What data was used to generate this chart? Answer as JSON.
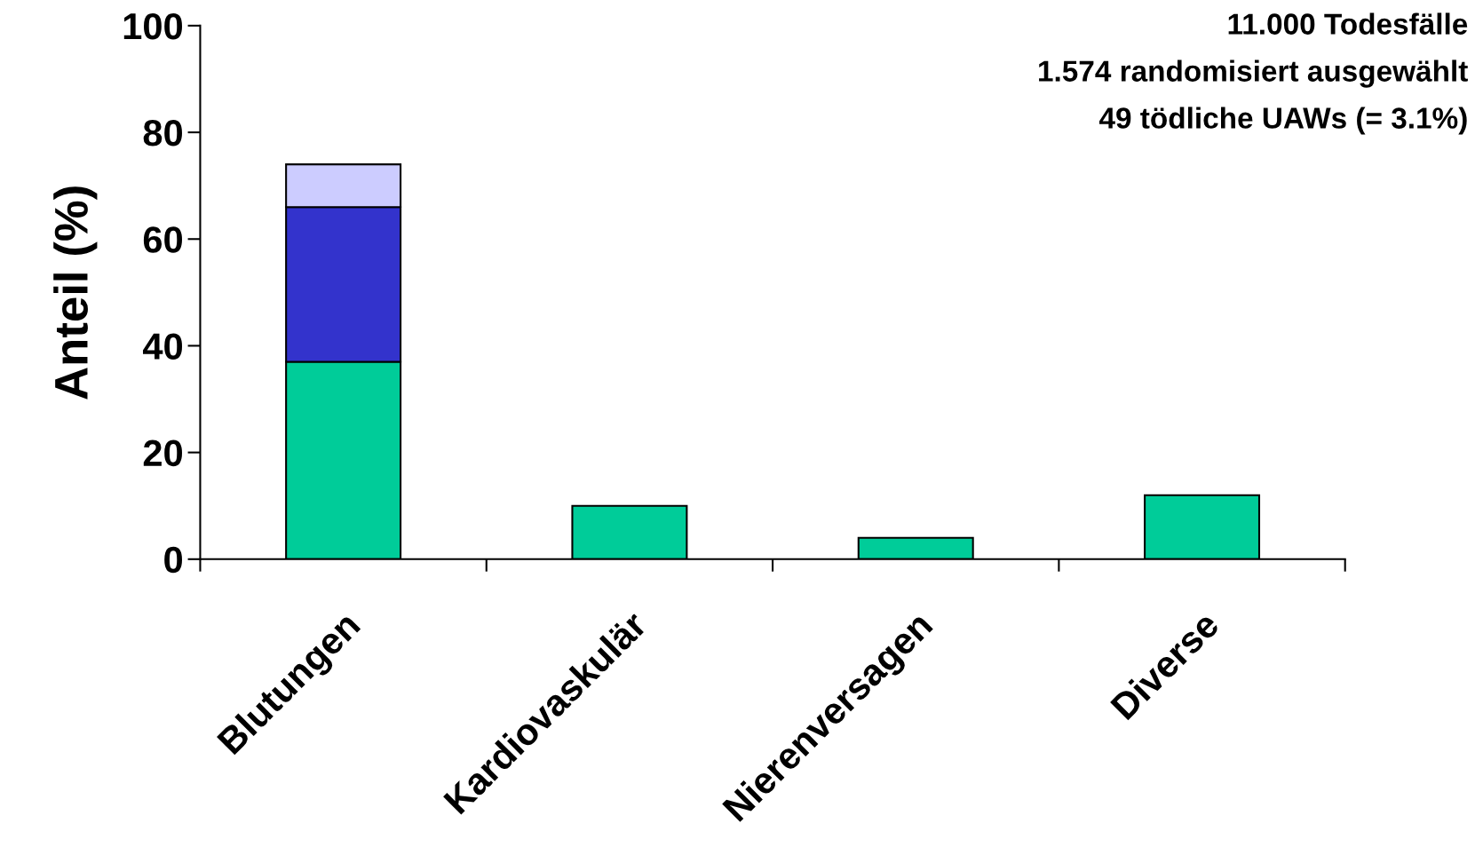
{
  "chart_data": {
    "type": "bar",
    "stacked": true,
    "ylabel": "Anteil (%)",
    "categories": [
      "Blutungen",
      "Kardiovaskulär",
      "Nierenversagen",
      "Diverse"
    ],
    "series": [
      {
        "color": "#00cc99",
        "values": [
          37,
          10,
          4,
          12
        ]
      },
      {
        "color": "#3333cc",
        "values": [
          29,
          null,
          null,
          null
        ]
      },
      {
        "color": "#ccccff",
        "values": [
          8,
          null,
          null,
          null
        ]
      }
    ],
    "ylim": [
      0,
      100
    ],
    "yticks": [
      0,
      20,
      40,
      60,
      80,
      100
    ],
    "grid": false,
    "legend": false,
    "annotations": [
      "11.000 Todesfälle",
      "1.574 randomisiert ausgewählt",
      "49 tödliche UAWs (= 3.1%)"
    ]
  }
}
